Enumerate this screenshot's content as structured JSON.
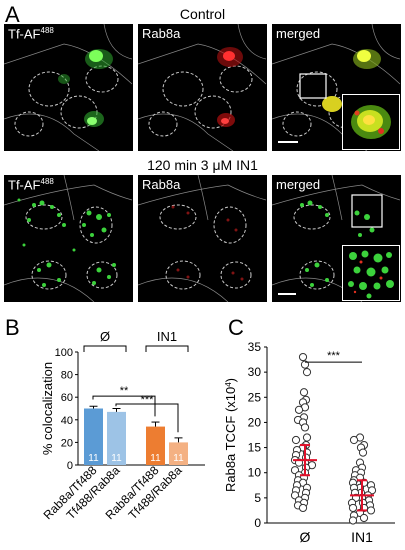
{
  "panel_a": {
    "letter": "A",
    "conditions": [
      {
        "title": "Control",
        "labels": {
          "tf": "Tf-AF",
          "tf_sup": "488",
          "rab": "Rab8a",
          "merged": "merged"
        }
      },
      {
        "title": "120 min 3 μM IN1",
        "labels": {
          "tf": "Tf-AF",
          "tf_sup": "488",
          "rab": "Rab8a",
          "merged": "merged"
        }
      }
    ]
  },
  "panel_b": {
    "letter": "B",
    "group_labels": [
      "Ø",
      "IN1"
    ],
    "significance": [
      "**",
      "***"
    ],
    "n_labels": [
      "11",
      "11",
      "11",
      "11"
    ],
    "colors": {
      "blue_dark": "#5b9bd5",
      "blue_light": "#9dc3e6",
      "orange_dark": "#ed7d31",
      "orange_light": "#f4b183"
    }
  },
  "panel_c": {
    "letter": "C",
    "significance": "***",
    "ylabel_main": "Rab8a TCCF (x10",
    "ylabel_sup": "4",
    "ylabel_end": ")"
  },
  "chart_data": [
    {
      "type": "bar",
      "ylabel": "% colocalization",
      "ylim": [
        0,
        100
      ],
      "yticks": [
        0,
        20,
        40,
        60,
        80,
        100
      ],
      "categories": [
        "Rab8a/Tf488",
        "Tf488/Rab8a",
        "Rab8a/Tf488",
        "Tf488/Rab8a"
      ],
      "values": [
        50,
        47,
        34,
        20
      ],
      "errors": [
        2,
        3,
        4,
        4
      ],
      "groups": [
        "Ø",
        "Ø",
        "IN1",
        "IN1"
      ]
    },
    {
      "type": "scatter",
      "ylim": [
        0,
        35
      ],
      "yticks": [
        0,
        5,
        10,
        15,
        20,
        25,
        30,
        35
      ],
      "categories": [
        "Ø",
        "IN1"
      ],
      "series": [
        {
          "values": [
            33,
            31.5,
            30,
            26,
            24.5,
            24,
            23,
            22.5,
            21,
            20.5,
            20,
            19,
            17,
            16.5,
            15.5,
            15,
            14.5,
            14,
            13.5,
            13,
            12.5,
            12,
            12,
            11.5,
            11,
            10.5,
            10,
            9.5,
            9,
            8.5,
            8,
            7.5,
            7,
            6.5,
            6,
            5.5,
            5,
            4.5,
            4,
            3.5,
            3
          ],
          "mean": 12.5,
          "error": 3
        },
        {
          "values": [
            17,
            16.5,
            15.5,
            15,
            14,
            12,
            11,
            10.5,
            10,
            9.5,
            9,
            8.5,
            8,
            8,
            7.5,
            7,
            7,
            6.5,
            6,
            6,
            5.5,
            5,
            5,
            4.5,
            4,
            4,
            3.5,
            3,
            3,
            2.5,
            2,
            1.5,
            1,
            0.5
          ],
          "mean": 5.5,
          "error": 3
        }
      ]
    }
  ]
}
